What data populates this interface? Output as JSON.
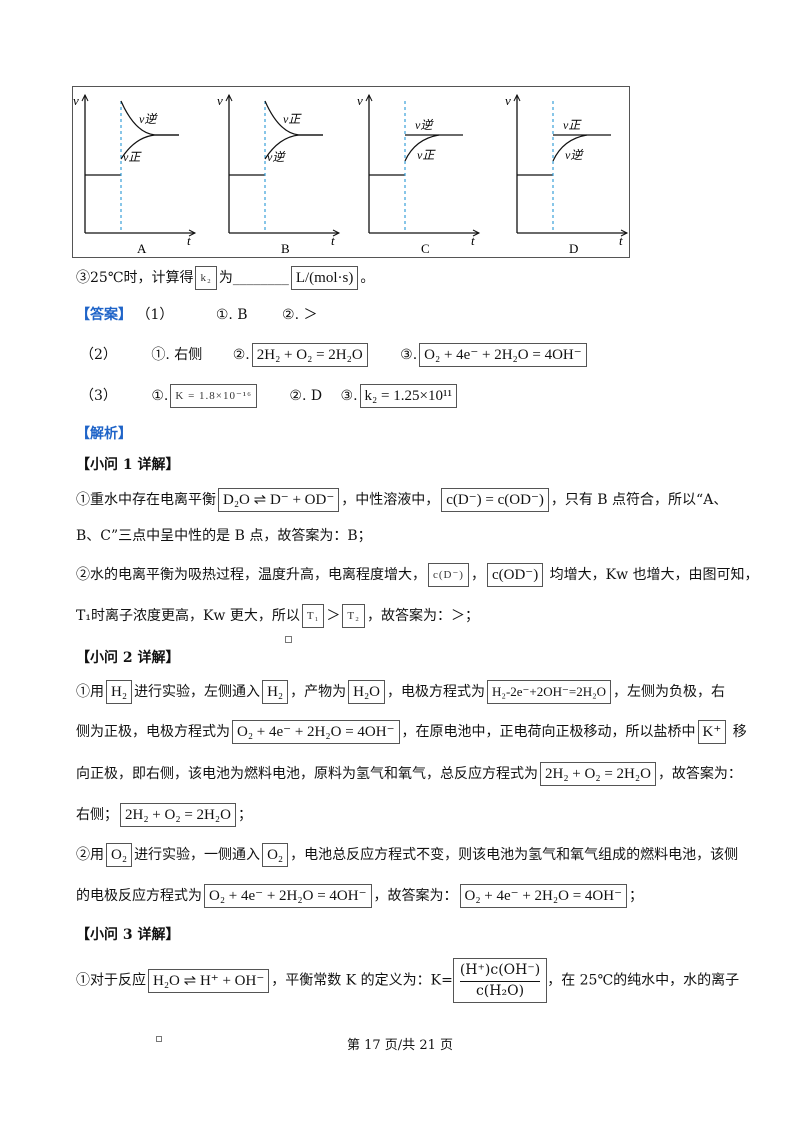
{
  "figure": {
    "panels": [
      {
        "letter": "A",
        "label_top": "v逆",
        "label_bottom": "v正",
        "axis_v": "v",
        "axis_t": "t"
      },
      {
        "letter": "B",
        "label_top": "v正",
        "label_bottom": "v逆",
        "axis_v": "v",
        "axis_t": "t"
      },
      {
        "letter": "C",
        "label_top": "v逆",
        "label_bottom": "v正",
        "axis_v": "v",
        "axis_t": "t"
      },
      {
        "letter": "D",
        "label_top": "v正",
        "label_bottom": "v逆",
        "axis_v": "v",
        "axis_t": "t"
      }
    ]
  },
  "q3": {
    "prefix": "③25℃时，计算得",
    "k": "k₂",
    "mid": "为",
    "blank": "________",
    "unit": "L/(mol·s)",
    "end": "。"
  },
  "answer": {
    "tag": "【答案】",
    "r1": {
      "num": "（1）",
      "a": "①. B",
      "b": "②. ＞"
    },
    "r2": {
      "num": "（2）",
      "a": "①. 右侧",
      "b_pre": "②.",
      "b": "2H₂ + O₂ = 2H₂O",
      "c_pre": "③.",
      "c": "O₂ + 4e⁻ + 2H₂O = 4OH⁻"
    },
    "r3": {
      "num": "（3）",
      "a_pre": "①.",
      "a": "K = 1.8×10⁻¹⁶",
      "b": "②. D",
      "c_pre": "③.",
      "c": "k₂ = 1.25×10¹¹"
    }
  },
  "analysis": {
    "tag": "【解析】",
    "s1_title": "【小问 1 详解】",
    "p1_a": "①重水中存在电离平衡",
    "p1_f1": "D₂O ⇌ D⁻ + OD⁻",
    "p1_b": "，中性溶液中，",
    "p1_f2": "c(D⁻) = c(OD⁻)",
    "p1_c": "，只有 B 点符合，所以“A、",
    "p1_d": "B、C”三点中呈中性的是 B 点，故答案为：B；",
    "p2_a": "②水的电离平衡为吸热过程，温度升高，电离程度增大，",
    "p2_f1": "c(D⁻)",
    "p2_sep": "，",
    "p2_f2": "c(OD⁻)",
    "p2_b": "均增大，Kw 也增大，由图可知，",
    "p2_c": "T₁时离子浓度更高，Kw 更大，所以",
    "p2_f3": "T₁",
    "p2_gt": "＞",
    "p2_f4": "T₂",
    "p2_d": "，故答案为：＞；",
    "s2_title": "【小问 2 详解】",
    "p3_a": "①用",
    "p3_f1": "H₂",
    "p3_b": "进行实验，左侧通入",
    "p3_f2": "H₂",
    "p3_c": "，产物为",
    "p3_f3": "H₂O",
    "p3_d": "，电极方程式为",
    "p3_f4": "H₂-2e⁻+2OH⁻=2H₂O",
    "p3_e": "，左侧为负极，右",
    "p3_g": "侧为正极，电极方程式为",
    "p3_f5": "O₂ + 4e⁻ + 2H₂O = 4OH⁻",
    "p3_h": "，在原电池中，正电荷向正极移动，所以盐桥中",
    "p3_f6": "K⁺",
    "p3_i": "移",
    "p3_j": "向正极，即右侧，该电池为燃料电池，原料为氢气和氧气，总反应方程式为",
    "p3_f7": "2H₂ + O₂ = 2H₂O",
    "p3_k": "，故答案为：",
    "p3_l": "右侧；",
    "p3_f8": "2H₂ + O₂ = 2H₂O",
    "p3_m": "；",
    "p4_a": "②用",
    "p4_f1": "O₂",
    "p4_b": "进行实验，一侧通入",
    "p4_f2": "O₂",
    "p4_c": "，电池总反应方程式不变，则该电池为氢气和氧气组成的燃料电池，该侧",
    "p4_d": "的电极反应方程式为",
    "p4_f3": "O₂ + 4e⁻ + 2H₂O = 4OH⁻",
    "p4_e": "，故答案为：",
    "p4_f4": "O₂ + 4e⁻ + 2H₂O = 4OH⁻",
    "p4_g": "；",
    "s3_title": "【小问 3 详解】",
    "p5_a": "①对于反应",
    "p5_f1": "H₂O ⇌ H⁺ + OH⁻",
    "p5_b": "，平衡常数 K 的定义为：K=",
    "p5_num": "(H⁺)c(OH⁻)",
    "p5_den": "c(H₂O)",
    "p5_c": "，在 25℃的纯水中，水的离子"
  },
  "footer": {
    "text": "第 17 页/共 21 页"
  },
  "colors": {
    "answer_tag": "#1f64c8",
    "dashed_line": "#3aa0d8"
  }
}
